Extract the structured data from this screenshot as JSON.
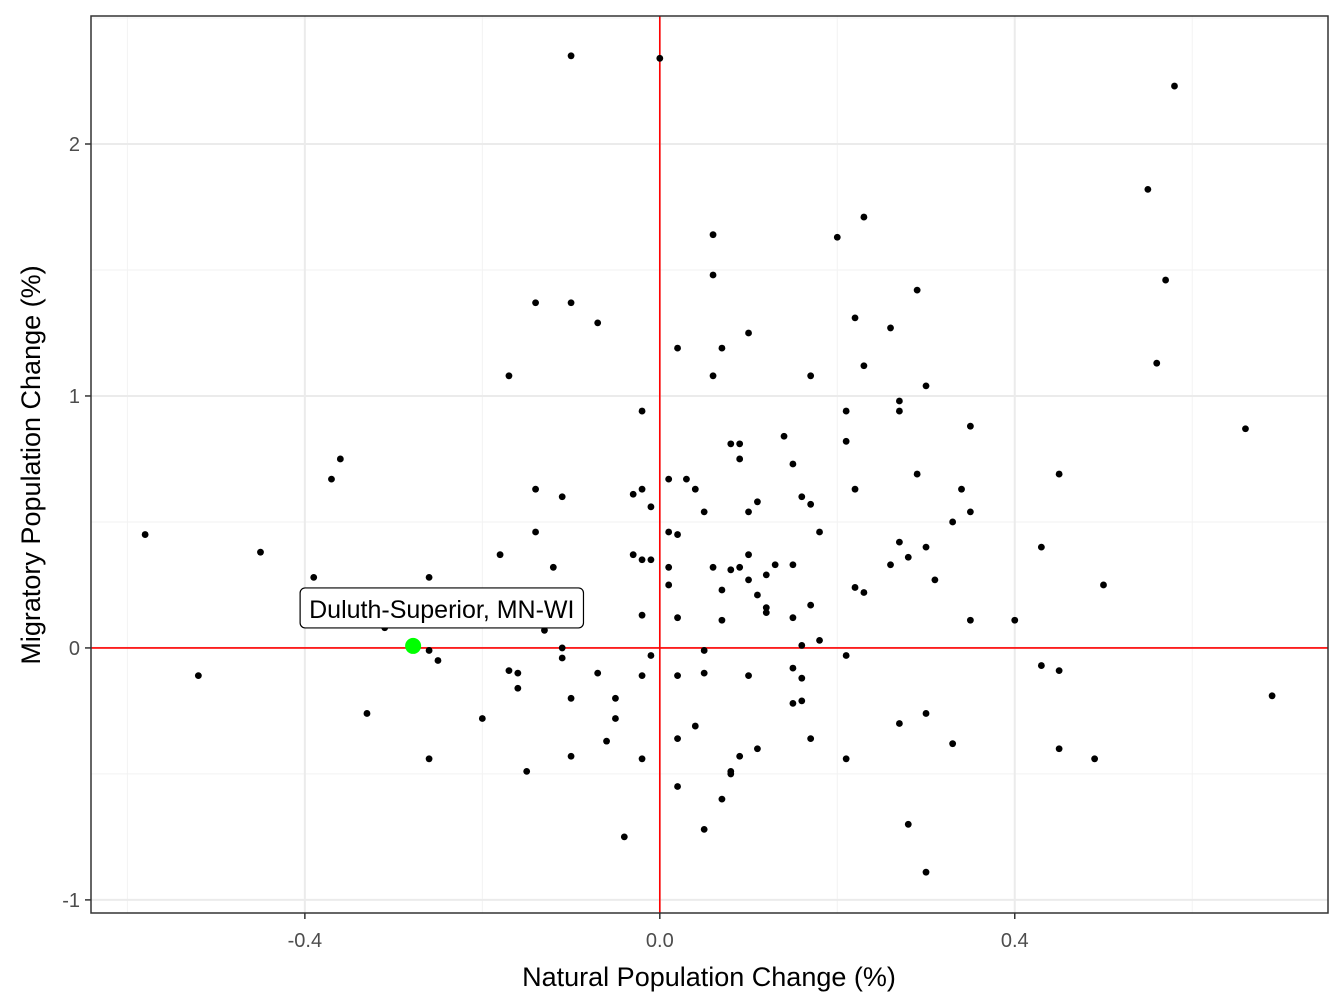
{
  "chart_data": {
    "type": "scatter",
    "title": "",
    "xlabel": "Natural Population Change (%)",
    "ylabel": "Migratory Population Change (%)",
    "xlim": [
      -0.641,
      0.753
    ],
    "ylim": [
      -1.052,
      2.508
    ],
    "x_ticks": [
      -0.4,
      0.0,
      0.4
    ],
    "x_tick_labels": [
      "-0.4",
      "0.0",
      "0.4"
    ],
    "y_ticks": [
      -1,
      0,
      1,
      2
    ],
    "y_tick_labels": [
      "-1",
      "0",
      "1",
      "2"
    ],
    "x_minor": [
      -0.6,
      -0.2,
      0.2,
      0.6
    ],
    "y_minor": [
      -0.5,
      0.5,
      1.5,
      2.5
    ],
    "grid": true,
    "reference_lines": {
      "x": 0,
      "y": 0,
      "color": "#ff0000"
    },
    "point_color": "#000000",
    "highlight": {
      "label": "Duluth-Superior, MN-WI",
      "x": -0.278,
      "y": 0.008,
      "color": "#00ff00"
    },
    "points": [
      [
        -0.1,
        2.35
      ],
      [
        0.0,
        2.34
      ],
      [
        0.58,
        2.23
      ],
      [
        0.55,
        1.82
      ],
      [
        0.57,
        1.46
      ],
      [
        0.56,
        1.13
      ],
      [
        0.66,
        0.87
      ],
      [
        0.23,
        1.71
      ],
      [
        0.2,
        1.63
      ],
      [
        0.06,
        1.64
      ],
      [
        0.06,
        1.48
      ],
      [
        0.29,
        1.42
      ],
      [
        -0.14,
        1.37
      ],
      [
        -0.1,
        1.37
      ],
      [
        -0.07,
        1.29
      ],
      [
        0.22,
        1.31
      ],
      [
        0.26,
        1.27
      ],
      [
        0.1,
        1.25
      ],
      [
        0.07,
        1.19
      ],
      [
        0.02,
        1.19
      ],
      [
        0.23,
        1.12
      ],
      [
        -0.17,
        1.08
      ],
      [
        0.06,
        1.08
      ],
      [
        0.17,
        1.08
      ],
      [
        0.3,
        1.04
      ],
      [
        0.27,
        0.98
      ],
      [
        0.27,
        0.94
      ],
      [
        0.21,
        0.94
      ],
      [
        -0.02,
        0.94
      ],
      [
        0.35,
        0.88
      ],
      [
        0.14,
        0.84
      ],
      [
        0.08,
        0.81
      ],
      [
        0.09,
        0.81
      ],
      [
        0.21,
        0.82
      ],
      [
        0.09,
        0.75
      ],
      [
        -0.36,
        0.75
      ],
      [
        -0.37,
        0.67
      ],
      [
        0.15,
        0.73
      ],
      [
        0.29,
        0.69
      ],
      [
        0.45,
        0.69
      ],
      [
        0.01,
        0.67
      ],
      [
        0.03,
        0.67
      ],
      [
        0.04,
        0.63
      ],
      [
        -0.14,
        0.63
      ],
      [
        -0.02,
        0.63
      ],
      [
        -0.03,
        0.61
      ],
      [
        0.22,
        0.63
      ],
      [
        0.34,
        0.63
      ],
      [
        0.16,
        0.6
      ],
      [
        -0.11,
        0.6
      ],
      [
        0.11,
        0.58
      ],
      [
        0.17,
        0.57
      ],
      [
        0.05,
        0.54
      ],
      [
        -0.01,
        0.56
      ],
      [
        0.1,
        0.54
      ],
      [
        0.35,
        0.54
      ],
      [
        0.33,
        0.5
      ],
      [
        0.01,
        0.46
      ],
      [
        0.02,
        0.45
      ],
      [
        -0.14,
        0.46
      ],
      [
        0.18,
        0.46
      ],
      [
        -0.58,
        0.45
      ],
      [
        0.27,
        0.42
      ],
      [
        0.43,
        0.4
      ],
      [
        -0.45,
        0.38
      ],
      [
        -0.18,
        0.37
      ],
      [
        -0.03,
        0.37
      ],
      [
        0.1,
        0.37
      ],
      [
        -0.02,
        0.35
      ],
      [
        -0.01,
        0.35
      ],
      [
        0.28,
        0.36
      ],
      [
        0.3,
        0.4
      ],
      [
        -0.12,
        0.32
      ],
      [
        0.06,
        0.32
      ],
      [
        0.01,
        0.32
      ],
      [
        0.09,
        0.32
      ],
      [
        0.08,
        0.31
      ],
      [
        0.15,
        0.33
      ],
      [
        0.13,
        0.33
      ],
      [
        0.26,
        0.33
      ],
      [
        0.1,
        0.27
      ],
      [
        -0.39,
        0.28
      ],
      [
        -0.26,
        0.28
      ],
      [
        0.12,
        0.29
      ],
      [
        0.31,
        0.27
      ],
      [
        0.01,
        0.25
      ],
      [
        0.5,
        0.25
      ],
      [
        0.22,
        0.24
      ],
      [
        0.23,
        0.22
      ],
      [
        0.07,
        0.23
      ],
      [
        0.11,
        0.21
      ],
      [
        0.12,
        0.16
      ],
      [
        0.12,
        0.14
      ],
      [
        0.17,
        0.17
      ],
      [
        -0.02,
        0.13
      ],
      [
        0.02,
        0.12
      ],
      [
        0.15,
        0.12
      ],
      [
        0.07,
        0.11
      ],
      [
        0.35,
        0.11
      ],
      [
        0.4,
        0.11
      ],
      [
        -0.31,
        0.08
      ],
      [
        -0.13,
        0.07
      ],
      [
        0.18,
        0.03
      ],
      [
        0.16,
        0.01
      ],
      [
        0.05,
        -0.01
      ],
      [
        -0.11,
        0.0
      ],
      [
        -0.26,
        -0.01
      ],
      [
        -0.25,
        -0.05
      ],
      [
        -0.11,
        -0.04
      ],
      [
        -0.01,
        -0.03
      ],
      [
        -0.52,
        -0.11
      ],
      [
        -0.17,
        -0.09
      ],
      [
        -0.16,
        -0.1
      ],
      [
        -0.07,
        -0.1
      ],
      [
        -0.02,
        -0.11
      ],
      [
        0.02,
        -0.11
      ],
      [
        0.05,
        -0.1
      ],
      [
        0.1,
        -0.11
      ],
      [
        0.15,
        -0.08
      ],
      [
        0.16,
        -0.12
      ],
      [
        0.21,
        -0.03
      ],
      [
        0.43,
        -0.07
      ],
      [
        0.45,
        -0.09
      ],
      [
        -0.16,
        -0.16
      ],
      [
        -0.05,
        -0.2
      ],
      [
        -0.1,
        -0.2
      ],
      [
        0.69,
        -0.19
      ],
      [
        -0.33,
        -0.26
      ],
      [
        -0.2,
        -0.28
      ],
      [
        -0.05,
        -0.28
      ],
      [
        0.16,
        -0.21
      ],
      [
        0.15,
        -0.22
      ],
      [
        0.27,
        -0.3
      ],
      [
        0.3,
        -0.26
      ],
      [
        0.04,
        -0.31
      ],
      [
        -0.06,
        -0.37
      ],
      [
        0.02,
        -0.36
      ],
      [
        0.17,
        -0.36
      ],
      [
        0.11,
        -0.4
      ],
      [
        0.09,
        -0.43
      ],
      [
        0.33,
        -0.38
      ],
      [
        0.45,
        -0.4
      ],
      [
        -0.26,
        -0.44
      ],
      [
        -0.1,
        -0.43
      ],
      [
        -0.02,
        -0.44
      ],
      [
        0.21,
        -0.44
      ],
      [
        0.49,
        -0.44
      ],
      [
        0.08,
        -0.49
      ],
      [
        0.08,
        -0.5
      ],
      [
        -0.15,
        -0.49
      ],
      [
        0.02,
        -0.55
      ],
      [
        0.07,
        -0.6
      ],
      [
        0.05,
        -0.72
      ],
      [
        -0.04,
        -0.75
      ],
      [
        0.28,
        -0.7
      ],
      [
        0.3,
        -0.89
      ]
    ]
  }
}
